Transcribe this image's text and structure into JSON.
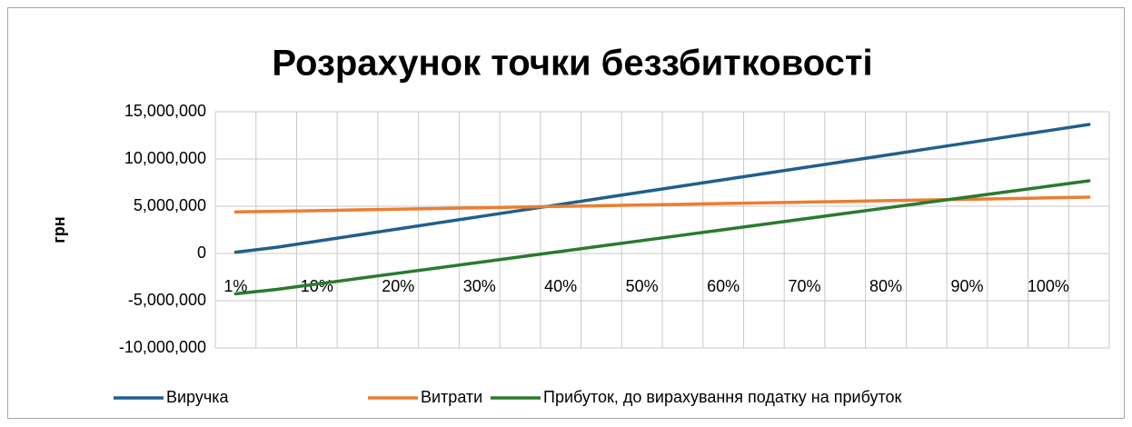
{
  "chart_data": {
    "type": "line",
    "title": "Розрахунок точки беззбитковості",
    "y_label": "грн",
    "categories": [
      "1%",
      null,
      "10%",
      null,
      "20%",
      null,
      "30%",
      null,
      "40%",
      null,
      "50%",
      null,
      "60%",
      null,
      "70%",
      null,
      "80%",
      null,
      "90%",
      null,
      "100%",
      null
    ],
    "series": [
      {
        "name": "Виручка",
        "color": "#215f8c",
        "values": [
          130000,
          650000,
          1300000,
          1950000,
          2600000,
          3250000,
          3900000,
          4550000,
          5200000,
          5850000,
          6500000,
          7150000,
          7800000,
          8450000,
          9100000,
          9750000,
          10400000,
          11050000,
          11700000,
          12350000,
          13000000,
          13650000
        ]
      },
      {
        "name": "Витрати",
        "color": "#ed7d31",
        "values": [
          4400000,
          4460000,
          4535000,
          4610000,
          4685000,
          4760000,
          4835000,
          4910000,
          4985000,
          5060000,
          5135000,
          5210000,
          5285000,
          5360000,
          5435000,
          5510000,
          5585000,
          5660000,
          5735000,
          5810000,
          5885000,
          5960000
        ]
      },
      {
        "name": "Прибуток, до вирахування податку на прибуток",
        "color": "#2a7a2e",
        "values": [
          -4270000,
          -3810000,
          -3235000,
          -2660000,
          -2085000,
          -1510000,
          -935000,
          -360000,
          215000,
          790000,
          1365000,
          1940000,
          2515000,
          3090000,
          3665000,
          4240000,
          4815000,
          5390000,
          5965000,
          6540000,
          7115000,
          7690000
        ]
      }
    ],
    "ylim": [
      -10000000,
      15000000
    ],
    "yticks": [
      {
        "value": -10000000,
        "label": "-10,000,000"
      },
      {
        "value": -5000000,
        "label": "-5,000,000"
      },
      0,
      {
        "value": 5000000,
        "label": "5,000,000"
      },
      {
        "value": 10000000,
        "label": "10,000,000"
      },
      {
        "value": 15000000,
        "label": "15,000,000"
      }
    ],
    "grid": true,
    "legend": "bottom"
  }
}
